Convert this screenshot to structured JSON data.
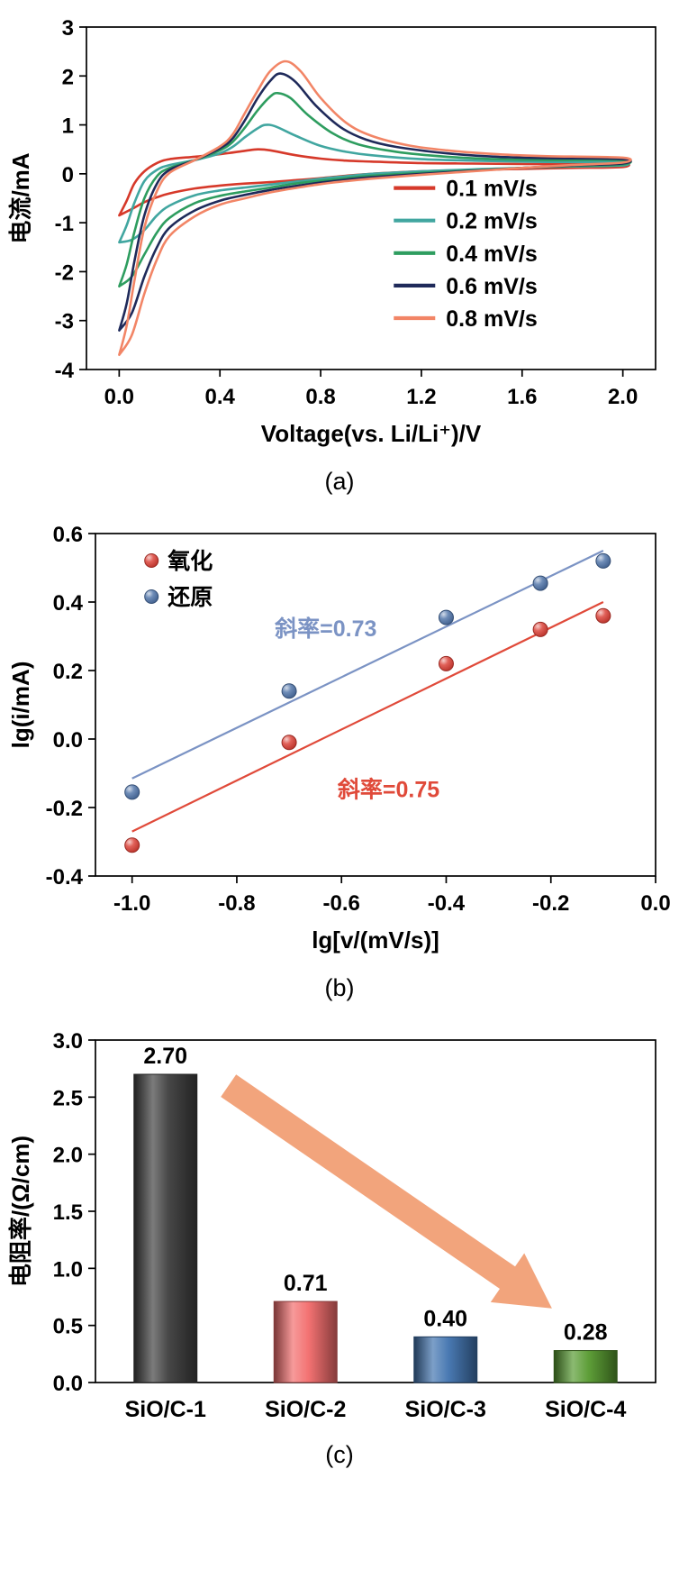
{
  "page": {
    "background": "#ffffff"
  },
  "panels": [
    {
      "caption": "(a)"
    },
    {
      "caption": "(b)"
    },
    {
      "caption": "(c)"
    }
  ],
  "chart_data": [
    {
      "type": "line",
      "subtype": "cyclic-voltammetry",
      "xlabel": "Voltage(vs. Li/Li⁺)/V",
      "ylabel": "电流/mA",
      "xlim": [
        -0.13,
        2.13
      ],
      "ylim": [
        -4,
        3
      ],
      "xticks": [
        0.0,
        0.4,
        0.8,
        1.2,
        1.6,
        2.0
      ],
      "yticks": [
        -4,
        -3,
        -2,
        -1,
        0,
        1,
        2,
        3
      ],
      "grid": false,
      "legend_position": "right-middle",
      "series": [
        {
          "name": "0.1 mV/s",
          "color": "#d6392a",
          "points": [
            [
              0,
              -0.85
            ],
            [
              0.03,
              -0.55
            ],
            [
              0.06,
              -0.2
            ],
            [
              0.1,
              0.05
            ],
            [
              0.15,
              0.22
            ],
            [
              0.2,
              0.3
            ],
            [
              0.3,
              0.35
            ],
            [
              0.4,
              0.4
            ],
            [
              0.5,
              0.47
            ],
            [
              0.55,
              0.5
            ],
            [
              0.6,
              0.48
            ],
            [
              0.7,
              0.38
            ],
            [
              0.8,
              0.31
            ],
            [
              0.9,
              0.27
            ],
            [
              1,
              0.25
            ],
            [
              1.2,
              0.22
            ],
            [
              1.4,
              0.21
            ],
            [
              1.6,
              0.2
            ],
            [
              1.8,
              0.2
            ],
            [
              2,
              0.22
            ],
            [
              2,
              0.14
            ],
            [
              1.8,
              0.12
            ],
            [
              1.6,
              0.1
            ],
            [
              1.4,
              0.08
            ],
            [
              1.2,
              0.05
            ],
            [
              1,
              0
            ],
            [
              0.9,
              -0.04
            ],
            [
              0.8,
              -0.09
            ],
            [
              0.7,
              -0.13
            ],
            [
              0.6,
              -0.17
            ],
            [
              0.5,
              -0.2
            ],
            [
              0.4,
              -0.24
            ],
            [
              0.3,
              -0.3
            ],
            [
              0.2,
              -0.4
            ],
            [
              0.15,
              -0.48
            ],
            [
              0.1,
              -0.58
            ],
            [
              0.05,
              -0.72
            ],
            [
              0,
              -0.85
            ]
          ]
        },
        {
          "name": "0.2 mV/s",
          "color": "#41a6a0",
          "points": [
            [
              0,
              -1.4
            ],
            [
              0.03,
              -1.05
            ],
            [
              0.06,
              -0.6
            ],
            [
              0.1,
              -0.15
            ],
            [
              0.15,
              0.08
            ],
            [
              0.2,
              0.18
            ],
            [
              0.3,
              0.28
            ],
            [
              0.4,
              0.42
            ],
            [
              0.45,
              0.55
            ],
            [
              0.5,
              0.75
            ],
            [
              0.55,
              0.93
            ],
            [
              0.58,
              1
            ],
            [
              0.62,
              0.97
            ],
            [
              0.7,
              0.78
            ],
            [
              0.8,
              0.57
            ],
            [
              0.9,
              0.45
            ],
            [
              1,
              0.38
            ],
            [
              1.2,
              0.3
            ],
            [
              1.4,
              0.27
            ],
            [
              1.6,
              0.25
            ],
            [
              1.8,
              0.24
            ],
            [
              2,
              0.25
            ],
            [
              2,
              0.17
            ],
            [
              1.8,
              0.15
            ],
            [
              1.6,
              0.12
            ],
            [
              1.4,
              0.09
            ],
            [
              1.2,
              0.05
            ],
            [
              1,
              0
            ],
            [
              0.9,
              -0.05
            ],
            [
              0.8,
              -0.1
            ],
            [
              0.7,
              -0.16
            ],
            [
              0.6,
              -0.22
            ],
            [
              0.5,
              -0.28
            ],
            [
              0.4,
              -0.34
            ],
            [
              0.3,
              -0.44
            ],
            [
              0.2,
              -0.65
            ],
            [
              0.15,
              -0.85
            ],
            [
              0.1,
              -1.15
            ],
            [
              0.05,
              -1.35
            ],
            [
              0,
              -1.4
            ]
          ]
        },
        {
          "name": "0.4 mV/s",
          "color": "#2e9d5f",
          "points": [
            [
              0,
              -2.3
            ],
            [
              0.03,
              -1.85
            ],
            [
              0.06,
              -1.2
            ],
            [
              0.1,
              -0.5
            ],
            [
              0.15,
              -0.05
            ],
            [
              0.2,
              0.12
            ],
            [
              0.3,
              0.28
            ],
            [
              0.4,
              0.48
            ],
            [
              0.45,
              0.65
            ],
            [
              0.5,
              0.95
            ],
            [
              0.55,
              1.3
            ],
            [
              0.6,
              1.58
            ],
            [
              0.63,
              1.65
            ],
            [
              0.68,
              1.55
            ],
            [
              0.75,
              1.2
            ],
            [
              0.85,
              0.82
            ],
            [
              0.95,
              0.6
            ],
            [
              1.1,
              0.45
            ],
            [
              1.3,
              0.35
            ],
            [
              1.5,
              0.3
            ],
            [
              1.7,
              0.28
            ],
            [
              2,
              0.28
            ],
            [
              2,
              0.19
            ],
            [
              1.8,
              0.16
            ],
            [
              1.6,
              0.12
            ],
            [
              1.4,
              0.07
            ],
            [
              1.2,
              0.02
            ],
            [
              1,
              -0.04
            ],
            [
              0.9,
              -0.09
            ],
            [
              0.8,
              -0.14
            ],
            [
              0.7,
              -0.2
            ],
            [
              0.6,
              -0.28
            ],
            [
              0.5,
              -0.36
            ],
            [
              0.4,
              -0.45
            ],
            [
              0.3,
              -0.6
            ],
            [
              0.2,
              -0.9
            ],
            [
              0.15,
              -1.2
            ],
            [
              0.1,
              -1.65
            ],
            [
              0.05,
              -2.1
            ],
            [
              0,
              -2.3
            ]
          ]
        },
        {
          "name": "0.6 mV/s",
          "color": "#1f2a5a",
          "points": [
            [
              0,
              -3.2
            ],
            [
              0.03,
              -2.65
            ],
            [
              0.06,
              -1.8
            ],
            [
              0.1,
              -0.85
            ],
            [
              0.15,
              -0.2
            ],
            [
              0.2,
              0.08
            ],
            [
              0.3,
              0.28
            ],
            [
              0.4,
              0.52
            ],
            [
              0.45,
              0.72
            ],
            [
              0.5,
              1.1
            ],
            [
              0.55,
              1.55
            ],
            [
              0.6,
              1.9
            ],
            [
              0.64,
              2.05
            ],
            [
              0.7,
              1.88
            ],
            [
              0.78,
              1.4
            ],
            [
              0.88,
              0.95
            ],
            [
              0.98,
              0.7
            ],
            [
              1.1,
              0.55
            ],
            [
              1.3,
              0.42
            ],
            [
              1.5,
              0.35
            ],
            [
              1.7,
              0.32
            ],
            [
              2,
              0.3
            ],
            [
              2,
              0.21
            ],
            [
              1.8,
              0.17
            ],
            [
              1.6,
              0.12
            ],
            [
              1.4,
              0.06
            ],
            [
              1.2,
              0
            ],
            [
              1,
              -0.07
            ],
            [
              0.9,
              -0.12
            ],
            [
              0.8,
              -0.18
            ],
            [
              0.7,
              -0.25
            ],
            [
              0.6,
              -0.33
            ],
            [
              0.5,
              -0.43
            ],
            [
              0.4,
              -0.55
            ],
            [
              0.3,
              -0.75
            ],
            [
              0.2,
              -1.1
            ],
            [
              0.15,
              -1.5
            ],
            [
              0.1,
              -2.1
            ],
            [
              0.05,
              -2.85
            ],
            [
              0,
              -3.2
            ]
          ]
        },
        {
          "name": "0.8 mV/s",
          "color": "#f28566",
          "points": [
            [
              0,
              -3.7
            ],
            [
              0.03,
              -3.1
            ],
            [
              0.06,
              -2.2
            ],
            [
              0.1,
              -1.1
            ],
            [
              0.15,
              -0.35
            ],
            [
              0.2,
              0.02
            ],
            [
              0.3,
              0.28
            ],
            [
              0.4,
              0.56
            ],
            [
              0.45,
              0.8
            ],
            [
              0.5,
              1.25
            ],
            [
              0.55,
              1.7
            ],
            [
              0.6,
              2.1
            ],
            [
              0.66,
              2.3
            ],
            [
              0.72,
              2.1
            ],
            [
              0.8,
              1.55
            ],
            [
              0.9,
              1.05
            ],
            [
              1,
              0.78
            ],
            [
              1.15,
              0.58
            ],
            [
              1.3,
              0.48
            ],
            [
              1.5,
              0.4
            ],
            [
              1.7,
              0.36
            ],
            [
              2,
              0.33
            ],
            [
              2,
              0.23
            ],
            [
              1.8,
              0.18
            ],
            [
              1.6,
              0.12
            ],
            [
              1.4,
              0.05
            ],
            [
              1.2,
              -0.02
            ],
            [
              1,
              -0.1
            ],
            [
              0.9,
              -0.15
            ],
            [
              0.8,
              -0.21
            ],
            [
              0.7,
              -0.29
            ],
            [
              0.6,
              -0.38
            ],
            [
              0.5,
              -0.5
            ],
            [
              0.4,
              -0.63
            ],
            [
              0.3,
              -0.87
            ],
            [
              0.2,
              -1.27
            ],
            [
              0.15,
              -1.75
            ],
            [
              0.1,
              -2.45
            ],
            [
              0.05,
              -3.3
            ],
            [
              0,
              -3.7
            ]
          ]
        }
      ]
    },
    {
      "type": "scatter",
      "xlabel": "lg[v/(mV/s)]",
      "ylabel": "lg(i/mA)",
      "xlim": [
        -1.07,
        0.0
      ],
      "ylim": [
        -0.4,
        0.6
      ],
      "xticks": [
        -1.0,
        -0.8,
        -0.6,
        -0.4,
        -0.2,
        0.0
      ],
      "yticks": [
        -0.4,
        -0.2,
        0.0,
        0.2,
        0.4,
        0.6
      ],
      "grid": false,
      "legend_position": "top-left",
      "series": [
        {
          "name": "氧化",
          "point_color": "#d93a30",
          "line_color": "#e04a3a",
          "points": [
            [
              -1.0,
              -0.31
            ],
            [
              -0.7,
              -0.01
            ],
            [
              -0.4,
              0.22
            ],
            [
              -0.22,
              0.32
            ],
            [
              -0.1,
              0.36
            ]
          ],
          "fit_line": [
            [
              -1.0,
              -0.27
            ],
            [
              -0.1,
              0.4
            ]
          ],
          "slope_label": "斜率=0.75",
          "slope_label_pos": [
            -0.51,
            -0.17
          ]
        },
        {
          "name": "还原",
          "point_color": "#4a6fa5",
          "line_color": "#7b93c4",
          "points": [
            [
              -1.0,
              -0.155
            ],
            [
              -0.7,
              0.14
            ],
            [
              -0.4,
              0.355
            ],
            [
              -0.22,
              0.455
            ],
            [
              -0.1,
              0.52
            ]
          ],
          "fit_line": [
            [
              -1.0,
              -0.115
            ],
            [
              -0.1,
              0.55
            ]
          ],
          "slope_label": "斜率=0.73",
          "slope_label_pos": [
            -0.63,
            0.3
          ]
        }
      ]
    },
    {
      "type": "bar",
      "xlabel": "",
      "ylabel": "电阻率/(Ω/cm)",
      "categories": [
        "SiO/C-1",
        "SiO/C-2",
        "SiO/C-3",
        "SiO/C-4"
      ],
      "values": [
        2.7,
        0.71,
        0.4,
        0.28
      ],
      "value_labels": [
        "2.70",
        "0.71",
        "0.40",
        "0.28"
      ],
      "bar_colors": [
        "#3d3d3d",
        "#f26b6b",
        "#3f72ae",
        "#55992e"
      ],
      "ylim": [
        0,
        3.0
      ],
      "yticks": [
        0.0,
        0.5,
        1.0,
        1.5,
        2.0,
        2.5,
        3.0
      ],
      "grid": false,
      "arrow": {
        "color": "#f2a47c",
        "from": [
          0.95,
          2.6
        ],
        "to": [
          3.26,
          0.65
        ]
      }
    }
  ]
}
